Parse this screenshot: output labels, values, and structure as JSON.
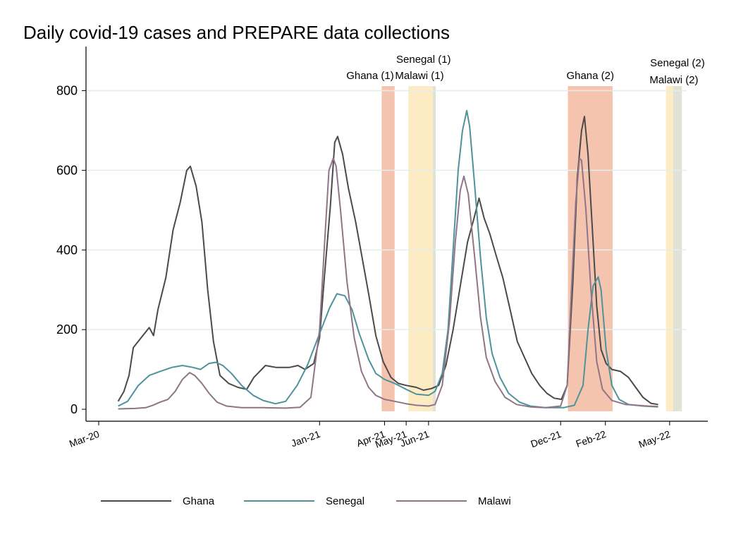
{
  "chart_data": {
    "type": "line",
    "title": "Daily covid-19 cases and PREPARE data collections",
    "xlabel": "",
    "ylabel": "",
    "x_range": [
      "2020-03-01",
      "2022-06-19"
    ],
    "ylim": [
      -30,
      900
    ],
    "y_ticks": [
      0,
      200,
      400,
      600,
      800
    ],
    "x_ticks": [
      {
        "date": "2020-03-01",
        "label": "Mar-20"
      },
      {
        "date": "2021-01-01",
        "label": "Jan-21"
      },
      {
        "date": "2021-04-01",
        "label": "Apr-21"
      },
      {
        "date": "2021-05-01",
        "label": "May-21"
      },
      {
        "date": "2021-06-01",
        "label": "Jun-21"
      },
      {
        "date": "2021-12-01",
        "label": "Dec-21"
      },
      {
        "date": "2022-02-01",
        "label": "Feb-22"
      },
      {
        "date": "2022-05-01",
        "label": "May-22"
      }
    ],
    "grid": true,
    "legend_position": "bottom",
    "bands": [
      {
        "label": "Ghana (1)",
        "start": "2021-03-28",
        "end": "2021-04-15",
        "color": "#f5c4af"
      },
      {
        "label": "Senegal (1)",
        "start": "2021-05-04",
        "end": "2021-06-07",
        "color": "#fdecc3"
      },
      {
        "label": "Malawi (1)",
        "start": "2021-06-07",
        "end": "2021-06-11",
        "color": "#e2e1d6"
      },
      {
        "label": "Ghana (2)",
        "start": "2021-12-11",
        "end": "2022-02-11",
        "color": "#f5c4af"
      },
      {
        "label": "Senegal (2)",
        "start": "2022-04-26",
        "end": "2022-05-06",
        "color": "#fdecc3"
      },
      {
        "label": "Malawi (2)",
        "start": "2022-05-06",
        "end": "2022-05-18",
        "color": "#e2e1d6"
      }
    ],
    "series": [
      {
        "name": "Ghana",
        "color": "#4a4a4a",
        "points": [
          [
            "2020-03-28",
            20
          ],
          [
            "2020-04-05",
            45
          ],
          [
            "2020-04-12",
            85
          ],
          [
            "2020-04-18",
            155
          ],
          [
            "2020-04-28",
            178
          ],
          [
            "2020-05-10",
            205
          ],
          [
            "2020-05-16",
            185
          ],
          [
            "2020-05-22",
            250
          ],
          [
            "2020-06-02",
            330
          ],
          [
            "2020-06-12",
            450
          ],
          [
            "2020-06-22",
            520
          ],
          [
            "2020-07-01",
            600
          ],
          [
            "2020-07-06",
            610
          ],
          [
            "2020-07-14",
            560
          ],
          [
            "2020-07-22",
            470
          ],
          [
            "2020-07-30",
            300
          ],
          [
            "2020-08-07",
            170
          ],
          [
            "2020-08-16",
            85
          ],
          [
            "2020-08-28",
            65
          ],
          [
            "2020-09-10",
            55
          ],
          [
            "2020-09-22",
            50
          ],
          [
            "2020-10-02",
            80
          ],
          [
            "2020-10-18",
            110
          ],
          [
            "2020-11-02",
            105
          ],
          [
            "2020-11-20",
            105
          ],
          [
            "2020-12-02",
            110
          ],
          [
            "2020-12-12",
            100
          ],
          [
            "2020-12-24",
            115
          ],
          [
            "2021-01-01",
            180
          ],
          [
            "2021-01-08",
            340
          ],
          [
            "2021-01-16",
            510
          ],
          [
            "2021-01-22",
            670
          ],
          [
            "2021-01-26",
            685
          ],
          [
            "2021-02-02",
            640
          ],
          [
            "2021-02-10",
            555
          ],
          [
            "2021-02-20",
            470
          ],
          [
            "2021-03-01",
            380
          ],
          [
            "2021-03-10",
            290
          ],
          [
            "2021-03-20",
            185
          ],
          [
            "2021-03-30",
            120
          ],
          [
            "2021-04-10",
            80
          ],
          [
            "2021-04-20",
            65
          ],
          [
            "2021-05-01",
            60
          ],
          [
            "2021-05-15",
            55
          ],
          [
            "2021-05-25",
            48
          ],
          [
            "2021-06-05",
            52
          ],
          [
            "2021-06-15",
            60
          ],
          [
            "2021-06-25",
            110
          ],
          [
            "2021-07-05",
            200
          ],
          [
            "2021-07-15",
            310
          ],
          [
            "2021-07-25",
            420
          ],
          [
            "2021-08-03",
            480
          ],
          [
            "2021-08-10",
            530
          ],
          [
            "2021-08-17",
            480
          ],
          [
            "2021-08-25",
            440
          ],
          [
            "2021-09-02",
            390
          ],
          [
            "2021-09-12",
            330
          ],
          [
            "2021-09-22",
            250
          ],
          [
            "2021-10-02",
            170
          ],
          [
            "2021-10-12",
            130
          ],
          [
            "2021-10-22",
            90
          ],
          [
            "2021-11-02",
            60
          ],
          [
            "2021-11-12",
            40
          ],
          [
            "2021-11-22",
            28
          ],
          [
            "2021-12-02",
            25
          ],
          [
            "2021-12-10",
            60
          ],
          [
            "2021-12-18",
            320
          ],
          [
            "2021-12-24",
            580
          ],
          [
            "2021-12-30",
            700
          ],
          [
            "2022-01-03",
            735
          ],
          [
            "2022-01-08",
            640
          ],
          [
            "2022-01-14",
            450
          ],
          [
            "2022-01-20",
            260
          ],
          [
            "2022-01-26",
            150
          ],
          [
            "2022-02-02",
            115
          ],
          [
            "2022-02-10",
            100
          ],
          [
            "2022-02-22",
            95
          ],
          [
            "2022-03-05",
            80
          ],
          [
            "2022-03-15",
            55
          ],
          [
            "2022-03-25",
            30
          ],
          [
            "2022-04-05",
            15
          ],
          [
            "2022-04-15",
            12
          ]
        ]
      },
      {
        "name": "Senegal",
        "color": "#4e939b",
        "points": [
          [
            "2020-03-28",
            8
          ],
          [
            "2020-04-10",
            20
          ],
          [
            "2020-04-25",
            60
          ],
          [
            "2020-05-10",
            85
          ],
          [
            "2020-05-25",
            95
          ],
          [
            "2020-06-10",
            105
          ],
          [
            "2020-06-25",
            110
          ],
          [
            "2020-07-10",
            105
          ],
          [
            "2020-07-20",
            100
          ],
          [
            "2020-08-01",
            115
          ],
          [
            "2020-08-10",
            118
          ],
          [
            "2020-08-20",
            110
          ],
          [
            "2020-09-01",
            90
          ],
          [
            "2020-09-15",
            60
          ],
          [
            "2020-10-01",
            35
          ],
          [
            "2020-10-15",
            22
          ],
          [
            "2020-11-01",
            14
          ],
          [
            "2020-11-15",
            20
          ],
          [
            "2020-12-01",
            60
          ],
          [
            "2020-12-15",
            110
          ],
          [
            "2021-01-01",
            190
          ],
          [
            "2021-01-15",
            255
          ],
          [
            "2021-01-25",
            290
          ],
          [
            "2021-02-05",
            285
          ],
          [
            "2021-02-15",
            250
          ],
          [
            "2021-02-25",
            190
          ],
          [
            "2021-03-10",
            125
          ],
          [
            "2021-03-20",
            90
          ],
          [
            "2021-04-01",
            75
          ],
          [
            "2021-04-15",
            65
          ],
          [
            "2021-05-01",
            50
          ],
          [
            "2021-05-15",
            38
          ],
          [
            "2021-06-01",
            35
          ],
          [
            "2021-06-10",
            45
          ],
          [
            "2021-06-20",
            90
          ],
          [
            "2021-06-28",
            200
          ],
          [
            "2021-07-05",
            400
          ],
          [
            "2021-07-12",
            600
          ],
          [
            "2021-07-18",
            700
          ],
          [
            "2021-07-24",
            750
          ],
          [
            "2021-07-28",
            710
          ],
          [
            "2021-08-04",
            560
          ],
          [
            "2021-08-12",
            380
          ],
          [
            "2021-08-20",
            230
          ],
          [
            "2021-08-28",
            140
          ],
          [
            "2021-09-08",
            80
          ],
          [
            "2021-09-20",
            40
          ],
          [
            "2021-10-05",
            18
          ],
          [
            "2021-10-20",
            8
          ],
          [
            "2021-11-10",
            4
          ],
          [
            "2021-12-05",
            4
          ],
          [
            "2021-12-20",
            10
          ],
          [
            "2022-01-01",
            60
          ],
          [
            "2022-01-08",
            200
          ],
          [
            "2022-01-15",
            310
          ],
          [
            "2022-01-22",
            332
          ],
          [
            "2022-01-26",
            300
          ],
          [
            "2022-02-02",
            150
          ],
          [
            "2022-02-10",
            60
          ],
          [
            "2022-02-20",
            25
          ],
          [
            "2022-03-05",
            12
          ],
          [
            "2022-03-25",
            8
          ],
          [
            "2022-04-15",
            6
          ]
        ]
      },
      {
        "name": "Malawi",
        "color": "#8f7587",
        "points": [
          [
            "2020-03-28",
            1
          ],
          [
            "2020-04-20",
            2
          ],
          [
            "2020-05-05",
            4
          ],
          [
            "2020-05-15",
            10
          ],
          [
            "2020-05-25",
            18
          ],
          [
            "2020-06-05",
            25
          ],
          [
            "2020-06-15",
            45
          ],
          [
            "2020-06-25",
            75
          ],
          [
            "2020-07-05",
            92
          ],
          [
            "2020-07-12",
            85
          ],
          [
            "2020-07-22",
            65
          ],
          [
            "2020-08-01",
            40
          ],
          [
            "2020-08-12",
            18
          ],
          [
            "2020-08-25",
            8
          ],
          [
            "2020-09-15",
            4
          ],
          [
            "2020-10-15",
            4
          ],
          [
            "2020-11-15",
            3
          ],
          [
            "2020-12-05",
            5
          ],
          [
            "2020-12-20",
            30
          ],
          [
            "2021-01-01",
            200
          ],
          [
            "2021-01-08",
            420
          ],
          [
            "2021-01-14",
            600
          ],
          [
            "2021-01-20",
            630
          ],
          [
            "2021-01-24",
            610
          ],
          [
            "2021-01-30",
            500
          ],
          [
            "2021-02-08",
            320
          ],
          [
            "2021-02-18",
            180
          ],
          [
            "2021-02-28",
            95
          ],
          [
            "2021-03-10",
            55
          ],
          [
            "2021-03-20",
            35
          ],
          [
            "2021-04-01",
            25
          ],
          [
            "2021-04-15",
            20
          ],
          [
            "2021-05-01",
            14
          ],
          [
            "2021-05-15",
            10
          ],
          [
            "2021-06-01",
            8
          ],
          [
            "2021-06-10",
            12
          ],
          [
            "2021-06-20",
            60
          ],
          [
            "2021-06-30",
            220
          ],
          [
            "2021-07-08",
            420
          ],
          [
            "2021-07-15",
            550
          ],
          [
            "2021-07-20",
            585
          ],
          [
            "2021-07-26",
            540
          ],
          [
            "2021-08-04",
            380
          ],
          [
            "2021-08-12",
            230
          ],
          [
            "2021-08-20",
            130
          ],
          [
            "2021-09-01",
            70
          ],
          [
            "2021-09-15",
            30
          ],
          [
            "2021-10-01",
            12
          ],
          [
            "2021-10-20",
            6
          ],
          [
            "2021-11-10",
            4
          ],
          [
            "2021-12-01",
            8
          ],
          [
            "2021-12-10",
            60
          ],
          [
            "2021-12-16",
            300
          ],
          [
            "2021-12-22",
            520
          ],
          [
            "2021-12-27",
            630
          ],
          [
            "2021-12-30",
            625
          ],
          [
            "2022-01-05",
            500
          ],
          [
            "2022-01-12",
            300
          ],
          [
            "2022-01-20",
            120
          ],
          [
            "2022-01-28",
            50
          ],
          [
            "2022-02-10",
            22
          ],
          [
            "2022-03-01",
            12
          ],
          [
            "2022-04-01",
            8
          ],
          [
            "2022-04-15",
            7
          ]
        ]
      }
    ]
  }
}
